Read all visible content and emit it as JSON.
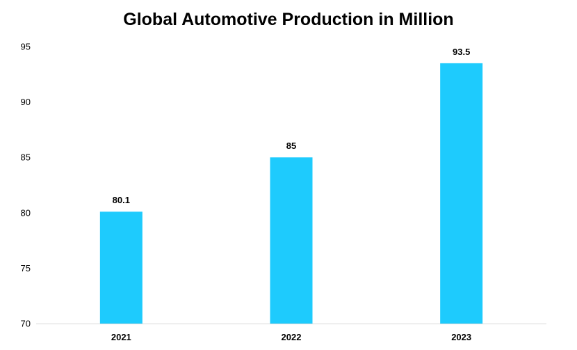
{
  "chart_data": {
    "type": "bar",
    "title": "Global Automotive Production in Million",
    "categories": [
      "2021",
      "2022",
      "2023"
    ],
    "values": [
      80.1,
      85,
      93.5
    ],
    "data_labels": [
      "80.1",
      "85",
      "93.5"
    ],
    "ylim": [
      70,
      95
    ],
    "yticks": [
      70,
      75,
      80,
      85,
      90,
      95
    ],
    "ytick_labels": [
      "70",
      "75",
      "80",
      "85",
      "90",
      "95"
    ],
    "xlabel": "",
    "ylabel": "",
    "grid": false,
    "legend": "none",
    "bar_color": "#1ECBFD",
    "axis_color": "#D9D9D9"
  }
}
